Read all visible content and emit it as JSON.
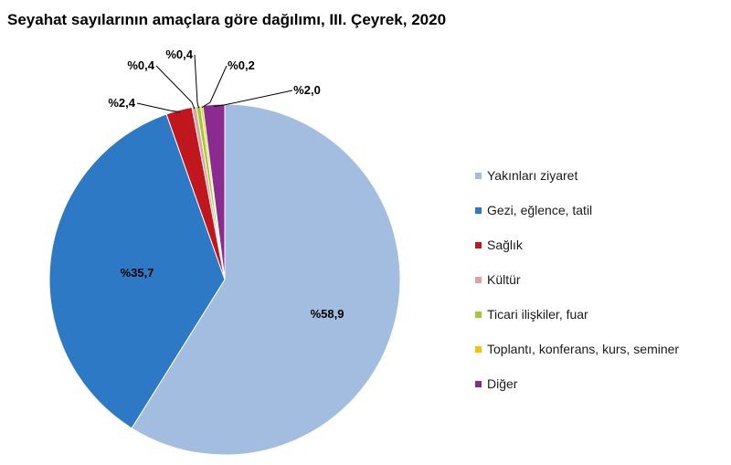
{
  "chart_data": {
    "type": "pie",
    "title": "Seyahat sayılarının amaçlara göre dağılımı, III. Çeyrek, 2020",
    "legend_position": "right",
    "series": [
      {
        "name": "Yakınları ziyaret",
        "value": 58.9,
        "label": "%58,9",
        "color": "#a3bde0"
      },
      {
        "name": "Gezi, eğlence, tatil",
        "value": 35.7,
        "label": "%35,7",
        "color": "#2e79c5"
      },
      {
        "name": "Sağlık",
        "value": 2.4,
        "label": "%2,4",
        "color": "#c0171f"
      },
      {
        "name": "Kültür",
        "value": 0.4,
        "label": "%0,4",
        "color": "#e4a0a0"
      },
      {
        "name": "Ticari ilişkiler, fuar",
        "value": 0.4,
        "label": "%0,4",
        "color": "#9acd32"
      },
      {
        "name": "Toplantı, konferans, kurs, seminer",
        "value": 0.2,
        "label": "%0,2",
        "color": "#f5c400"
      },
      {
        "name": "Diğer",
        "value": 2.0,
        "label": "%2,0",
        "color": "#8b2a8f"
      }
    ]
  }
}
